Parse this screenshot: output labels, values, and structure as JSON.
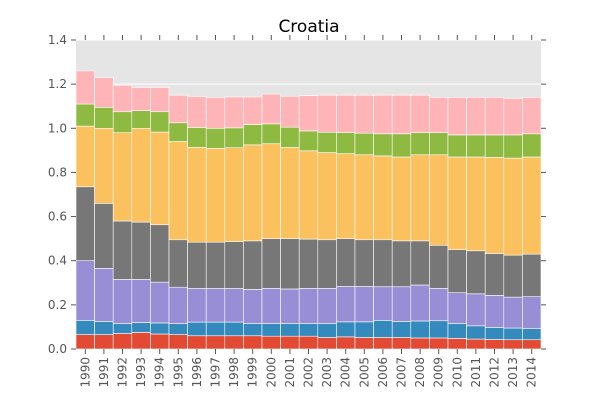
{
  "chart_data": {
    "type": "bar",
    "stacked": true,
    "title": "Croatia",
    "xlabel": "",
    "ylabel": "",
    "ylim": [
      0,
      1.4
    ],
    "yticks": [
      "0.0",
      "0.2",
      "0.4",
      "0.6",
      "0.8",
      "1.0",
      "1.2",
      "1.4"
    ],
    "grid": true,
    "legend": "none",
    "background_color": "#e5e5e5",
    "categories": [
      "1990",
      "1991",
      "1992",
      "1993",
      "1994",
      "1995",
      "1996",
      "1997",
      "1998",
      "1999",
      "2000",
      "2001",
      "2002",
      "2003",
      "2004",
      "2005",
      "2006",
      "2007",
      "2008",
      "2009",
      "2010",
      "2011",
      "2012",
      "2013",
      "2014"
    ],
    "series": [
      {
        "color": "#e24a33",
        "values": [
          0.065,
          0.065,
          0.07,
          0.075,
          0.068,
          0.065,
          0.06,
          0.06,
          0.06,
          0.06,
          0.058,
          0.058,
          0.058,
          0.052,
          0.055,
          0.052,
          0.052,
          0.052,
          0.05,
          0.05,
          0.048,
          0.045,
          0.043,
          0.042,
          0.042
        ]
      },
      {
        "color": "#348abd",
        "values": [
          0.065,
          0.06,
          0.045,
          0.045,
          0.05,
          0.05,
          0.062,
          0.062,
          0.062,
          0.055,
          0.057,
          0.057,
          0.057,
          0.063,
          0.068,
          0.071,
          0.078,
          0.073,
          0.077,
          0.078,
          0.067,
          0.06,
          0.055,
          0.053,
          0.05
        ]
      },
      {
        "color": "#988ed5",
        "values": [
          0.27,
          0.24,
          0.2,
          0.195,
          0.185,
          0.165,
          0.152,
          0.152,
          0.152,
          0.155,
          0.16,
          0.157,
          0.16,
          0.16,
          0.16,
          0.16,
          0.152,
          0.157,
          0.163,
          0.147,
          0.14,
          0.145,
          0.145,
          0.14,
          0.145
        ]
      },
      {
        "color": "#777777",
        "values": [
          0.335,
          0.295,
          0.265,
          0.26,
          0.26,
          0.215,
          0.21,
          0.21,
          0.213,
          0.22,
          0.225,
          0.228,
          0.223,
          0.22,
          0.217,
          0.212,
          0.213,
          0.208,
          0.2,
          0.195,
          0.195,
          0.195,
          0.19,
          0.19,
          0.193
        ]
      },
      {
        "color": "#fbc15e",
        "values": [
          0.275,
          0.34,
          0.4,
          0.425,
          0.42,
          0.445,
          0.43,
          0.425,
          0.425,
          0.435,
          0.43,
          0.413,
          0.4,
          0.395,
          0.385,
          0.385,
          0.38,
          0.38,
          0.39,
          0.41,
          0.42,
          0.425,
          0.435,
          0.44,
          0.44
        ]
      },
      {
        "color": "#8eba42",
        "values": [
          0.1,
          0.095,
          0.095,
          0.08,
          0.092,
          0.085,
          0.09,
          0.091,
          0.09,
          0.092,
          0.09,
          0.092,
          0.09,
          0.092,
          0.095,
          0.098,
          0.1,
          0.105,
          0.1,
          0.1,
          0.1,
          0.1,
          0.102,
          0.105,
          0.105
        ]
      },
      {
        "color": "#ffb5b8",
        "values": [
          0.15,
          0.135,
          0.12,
          0.105,
          0.11,
          0.125,
          0.14,
          0.14,
          0.14,
          0.125,
          0.135,
          0.14,
          0.16,
          0.168,
          0.17,
          0.172,
          0.175,
          0.175,
          0.17,
          0.16,
          0.17,
          0.17,
          0.17,
          0.165,
          0.165
        ]
      }
    ]
  }
}
